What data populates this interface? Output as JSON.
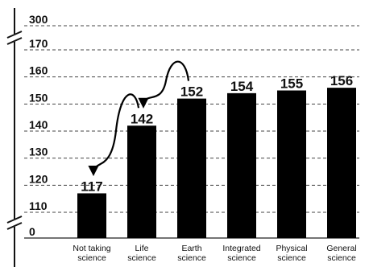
{
  "chart_data": {
    "type": "bar",
    "categories": [
      [
        "Not taking",
        "science"
      ],
      [
        "Life",
        "science"
      ],
      [
        "Earth",
        "science"
      ],
      [
        "Integrated",
        "science"
      ],
      [
        "Physical",
        "science"
      ],
      [
        "General",
        "science"
      ]
    ],
    "values": [
      117,
      142,
      152,
      154,
      155,
      156
    ],
    "data_labels": [
      "117",
      "142",
      "152",
      "154",
      "155",
      "156"
    ],
    "yticks": [
      "0",
      "110",
      "120",
      "130",
      "140",
      "150",
      "160",
      "170",
      "300"
    ],
    "axis_breaks": [
      "0-110",
      "170-300"
    ],
    "ylim": [
      110,
      170
    ],
    "grid": true,
    "bar_color": "#000000",
    "arrows": [
      {
        "from": "Life science",
        "to": "Not taking science"
      },
      {
        "from": "Earth science",
        "to": "Life science"
      }
    ]
  }
}
